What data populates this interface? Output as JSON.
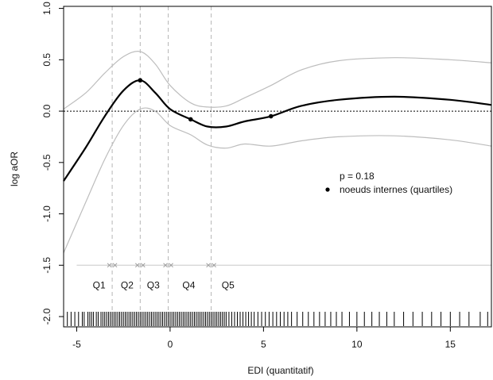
{
  "chart_data": {
    "type": "line",
    "xlabel": "EDI (quantitatif)",
    "ylabel": "log aOR",
    "xlim": [
      -5.7,
      17.2
    ],
    "ylim": [
      -2.1,
      1.02
    ],
    "x_ticks": [
      -5,
      0,
      5,
      10,
      15
    ],
    "x_tick_labels": [
      "-5",
      "0",
      "5",
      "10",
      "15"
    ],
    "y_ticks": [
      1.0,
      0.5,
      0.0,
      -0.5,
      -1.0,
      -1.5,
      -2.0
    ],
    "y_tick_labels": [
      "1.0",
      "0.5",
      "0.0",
      "-0.5",
      "-1.0",
      "-1.5",
      "-2.0"
    ],
    "reference_line_y": 0,
    "series": [
      {
        "name": "",
        "role": "estimate",
        "x": [
          -5.7,
          -4.5,
          -3.5,
          -2.5,
          -1.6,
          -0.8,
          0,
          1.1,
          2.0,
          3.0,
          4.0,
          5.4,
          7.0,
          9.0,
          12.0,
          15.0,
          17.2
        ],
        "y": [
          -0.68,
          -0.35,
          -0.05,
          0.2,
          0.3,
          0.18,
          0.02,
          -0.08,
          -0.15,
          -0.15,
          -0.1,
          -0.05,
          0.05,
          0.11,
          0.14,
          0.11,
          0.06
        ]
      },
      {
        "name": "",
        "role": "upper_ci",
        "x": [
          -5.7,
          -4.5,
          -3.5,
          -2.5,
          -1.6,
          -0.8,
          0,
          1.1,
          2.0,
          3.0,
          4.0,
          5.4,
          7.0,
          9.0,
          12.0,
          15.0,
          17.2
        ],
        "y": [
          0.02,
          0.18,
          0.37,
          0.53,
          0.58,
          0.46,
          0.25,
          0.08,
          0.04,
          0.05,
          0.13,
          0.25,
          0.4,
          0.49,
          0.52,
          0.5,
          0.47
        ]
      },
      {
        "name": "",
        "role": "lower_ci",
        "x": [
          -5.7,
          -4.5,
          -3.5,
          -2.5,
          -1.6,
          -0.8,
          0,
          1.1,
          2.0,
          3.0,
          4.0,
          5.4,
          7.0,
          9.0,
          12.0,
          15.0,
          17.2
        ],
        "y": [
          -1.38,
          -0.88,
          -0.47,
          -0.14,
          0.02,
          0.0,
          -0.14,
          -0.23,
          -0.33,
          -0.36,
          -0.32,
          -0.34,
          -0.29,
          -0.25,
          -0.24,
          -0.28,
          -0.34
        ]
      }
    ],
    "knots": {
      "x": [
        -1.6,
        1.1,
        5.4
      ],
      "y": [
        0.3,
        -0.08,
        -0.05
      ]
    },
    "quantile_cutpoints": [
      -3.1,
      -1.6,
      -0.1,
      2.2
    ],
    "quantile_line_y": -1.5,
    "quantile_labels": [
      {
        "label": "Q1",
        "x": -3.8
      },
      {
        "label": "Q2",
        "x": -2.3
      },
      {
        "label": "Q3",
        "x": -0.9
      },
      {
        "label": "Q4",
        "x": 1.0
      },
      {
        "label": "Q5",
        "x": 3.1
      }
    ],
    "annotations": {
      "p_value": "p = 0.18",
      "legend_knots": "noeuds internes (quartiles)"
    },
    "rug_x": [
      -5.5,
      -5.3,
      -5.1,
      -4.9,
      -4.7,
      -4.6,
      -4.4,
      -4.3,
      -4.2,
      -4.1,
      -3.95,
      -3.85,
      -3.7,
      -3.6,
      -3.5,
      -3.4,
      -3.3,
      -3.2,
      -3.1,
      -3.0,
      -2.9,
      -2.8,
      -2.7,
      -2.6,
      -2.5,
      -2.4,
      -2.3,
      -2.2,
      -2.1,
      -2.0,
      -1.9,
      -1.8,
      -1.7,
      -1.6,
      -1.5,
      -1.4,
      -1.3,
      -1.2,
      -1.1,
      -1.0,
      -0.9,
      -0.8,
      -0.7,
      -0.6,
      -0.5,
      -0.4,
      -0.3,
      -0.2,
      -0.1,
      0.0,
      0.1,
      0.2,
      0.3,
      0.4,
      0.5,
      0.6,
      0.7,
      0.8,
      0.9,
      1.0,
      1.1,
      1.2,
      1.3,
      1.4,
      1.5,
      1.6,
      1.7,
      1.8,
      1.9,
      2.0,
      2.1,
      2.2,
      2.3,
      2.4,
      2.5,
      2.6,
      2.7,
      2.8,
      2.9,
      3.0,
      3.15,
      3.3,
      3.45,
      3.6,
      3.75,
      3.9,
      4.05,
      4.2,
      4.35,
      4.5,
      4.7,
      4.9,
      5.1,
      5.3,
      5.5,
      5.7,
      5.9,
      6.1,
      6.3,
      6.5,
      6.8,
      7.1,
      7.4,
      7.7,
      8.0,
      8.3,
      8.6,
      8.9,
      9.2,
      9.6,
      10.0,
      10.4,
      10.8,
      11.2,
      11.6,
      12.0,
      12.5,
      13.0,
      13.5,
      14.0,
      14.5,
      15.0,
      15.5,
      16.0,
      16.6,
      17.0
    ]
  }
}
